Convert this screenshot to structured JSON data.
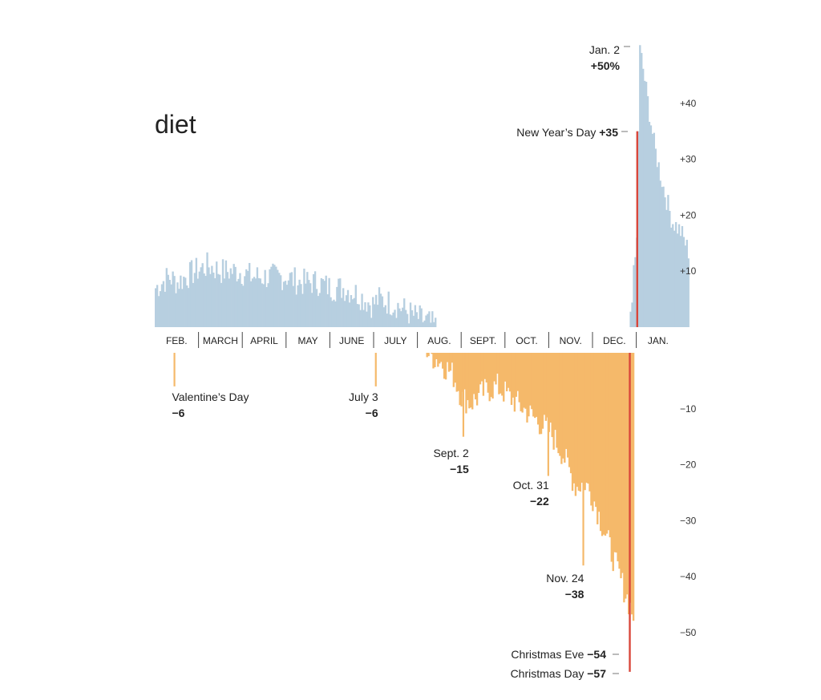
{
  "chart_data": {
    "type": "bar",
    "title": "diet",
    "xlabel": "",
    "ylabel": "",
    "ylim": [
      -60,
      52
    ],
    "y_ticks": [
      "+40",
      "+30",
      "+20",
      "+10",
      "−10",
      "−20",
      "−30",
      "−40",
      "−50"
    ],
    "y_tick_values": [
      40,
      30,
      20,
      10,
      -10,
      -20,
      -30,
      -40,
      -50
    ],
    "months": [
      "FEB.",
      "MARCH",
      "APRIL",
      "MAY",
      "JUNE",
      "JULY",
      "AUG.",
      "SEPT.",
      "OCT.",
      "NOV.",
      "DEC.",
      "JAN."
    ],
    "colors": {
      "positive": "#b7cfe0",
      "negative": "#f5b96a",
      "highlight": "#d9473b"
    },
    "series": [
      {
        "segment": "positive",
        "anchors_month_value": [
          [
            0.0,
            7
          ],
          [
            0.3,
            9
          ],
          [
            0.5,
            8
          ],
          [
            0.9,
            10
          ],
          [
            1.2,
            11
          ],
          [
            1.5,
            10
          ],
          [
            1.9,
            10
          ],
          [
            2.2,
            9
          ],
          [
            2.6,
            9
          ],
          [
            3.0,
            9
          ],
          [
            3.3,
            8
          ],
          [
            3.7,
            8
          ],
          [
            4.0,
            7
          ],
          [
            4.3,
            7
          ],
          [
            4.6,
            6
          ],
          [
            4.95,
            4
          ],
          [
            5.1,
            5
          ],
          [
            5.5,
            4
          ],
          [
            5.9,
            2
          ],
          [
            6.2,
            1
          ],
          [
            6.4,
            0
          ]
        ]
      },
      {
        "segment": "negative",
        "anchors_month_value": [
          [
            6.2,
            0
          ],
          [
            6.5,
            -1.5
          ],
          [
            6.8,
            -4
          ],
          [
            7.0,
            -8
          ],
          [
            7.2,
            -9
          ],
          [
            7.5,
            -7
          ],
          [
            7.8,
            -6
          ],
          [
            8.1,
            -8
          ],
          [
            8.4,
            -10
          ],
          [
            8.7,
            -12
          ],
          [
            9.0,
            -14
          ],
          [
            9.3,
            -18
          ],
          [
            9.6,
            -24
          ],
          [
            9.8,
            -23
          ],
          [
            10.0,
            -26
          ],
          [
            10.3,
            -33
          ],
          [
            10.6,
            -40
          ],
          [
            10.92,
            -47
          ]
        ],
        "spikes_month_value": [
          [
            7.03,
            -15
          ],
          [
            8.97,
            -22
          ],
          [
            9.77,
            -38
          ]
        ]
      },
      {
        "segment": "january",
        "anchors_month_value": [
          [
            10.85,
            3
          ],
          [
            11.0,
            16
          ],
          [
            11.05,
            50
          ],
          [
            11.12,
            47
          ],
          [
            11.25,
            40
          ],
          [
            11.4,
            32
          ],
          [
            11.6,
            25
          ],
          [
            11.8,
            19
          ],
          [
            12.0,
            17
          ],
          [
            12.2,
            13
          ]
        ]
      }
    ],
    "annotations": [
      {
        "date": "Valentine’s Day",
        "value": "−6",
        "x_month": 0.43,
        "y": -6
      },
      {
        "date": "July 3",
        "value": "−6",
        "x_month": 5.03,
        "y": -6
      },
      {
        "date": "Sept. 2",
        "value": "−15",
        "x_month": 7.03,
        "y": -15
      },
      {
        "date": "Oct. 31",
        "value": "−22",
        "x_month": 8.97,
        "y": -22
      },
      {
        "date": "Nov. 24",
        "value": "−38",
        "x_month": 9.77,
        "y": -38
      },
      {
        "date": "Christmas Eve",
        "value": "−54",
        "x_month": 10.8,
        "y": -54
      },
      {
        "date": "Christmas Day",
        "value": "−57",
        "x_month": 10.83,
        "y": -57
      },
      {
        "date": "New Year’s Day",
        "value": "+35",
        "x_month": 11.0,
        "y": 35
      },
      {
        "date": "Jan. 2",
        "value": "+50%",
        "x_month": 11.05,
        "y": 50
      }
    ]
  }
}
